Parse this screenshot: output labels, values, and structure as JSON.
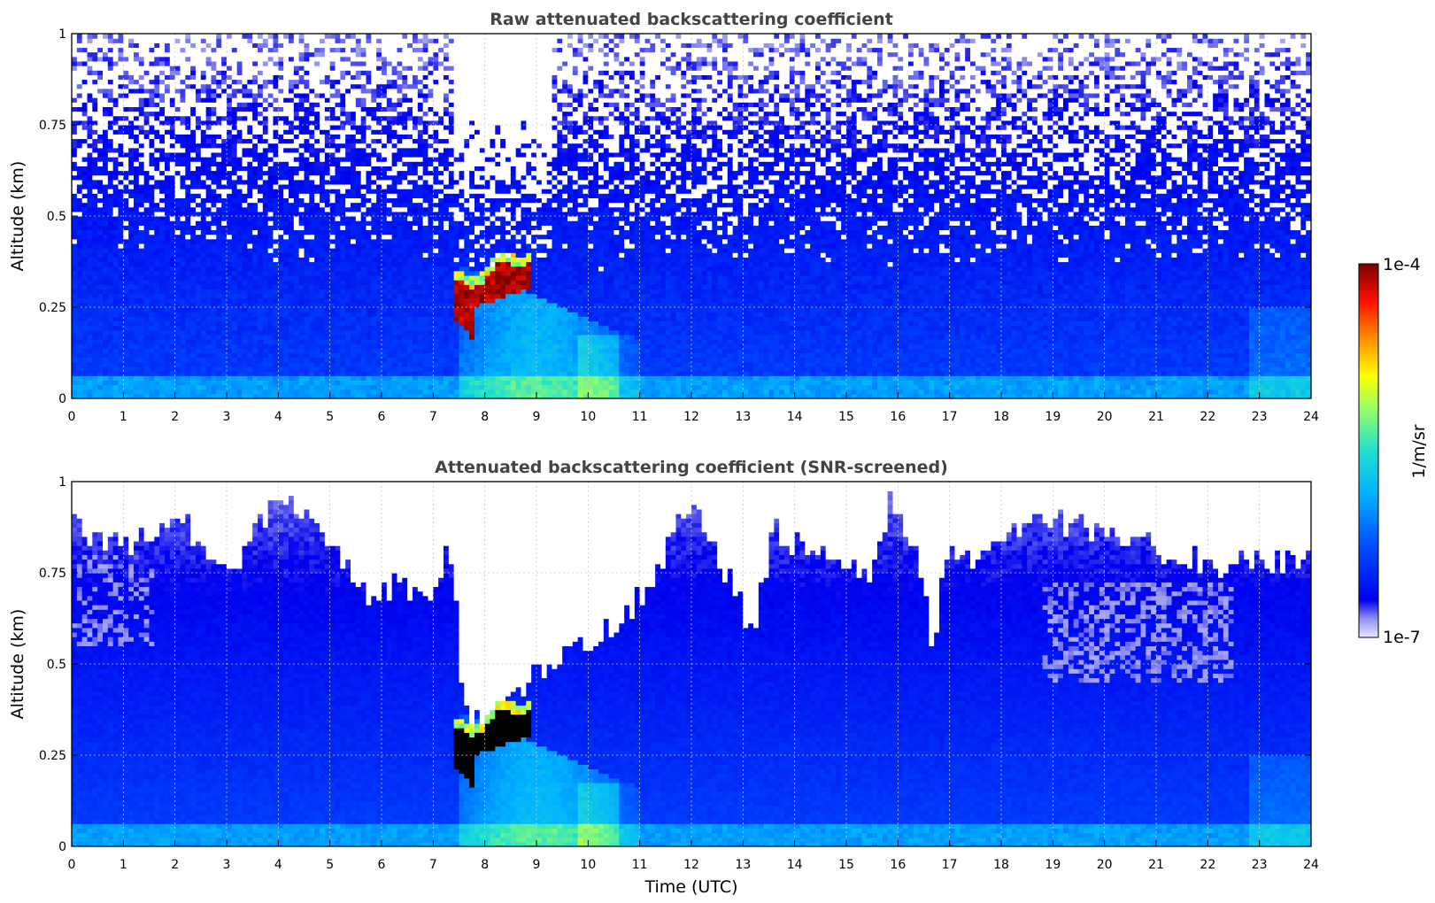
{
  "chart_data": [
    {
      "type": "heatmap",
      "title": "Raw attenuated backscattering coefficient",
      "xlabel": "",
      "ylabel": "Altitude (km)",
      "xlim": [
        0,
        24
      ],
      "ylim": [
        0,
        1
      ],
      "xticks": [
        "0",
        "1",
        "2",
        "3",
        "4",
        "5",
        "6",
        "7",
        "8",
        "9",
        "10",
        "11",
        "12",
        "13",
        "14",
        "15",
        "16",
        "17",
        "18",
        "19",
        "20",
        "21",
        "22",
        "23",
        "24"
      ],
      "yticks": [
        "0",
        "0.25",
        "0.5",
        "0.75",
        "1"
      ],
      "grid": true,
      "screened": false,
      "features": [
        {
          "name": "aerosol layer",
          "time_range": [
            7.4,
            8.9
          ],
          "altitude_top_km": [
            0.3,
            0.4
          ],
          "max_level": "1e-4"
        },
        {
          "name": "boundary layer plume",
          "time_range": [
            7.5,
            11.0
          ],
          "altitude_km": [
            0.0,
            0.35
          ]
        }
      ]
    },
    {
      "type": "heatmap",
      "title": "Attenuated backscattering coefficient (SNR-screened)",
      "xlabel": "Time (UTC)",
      "ylabel": "Altitude (km)",
      "xlim": [
        0,
        24
      ],
      "ylim": [
        0,
        1
      ],
      "xticks": [
        "0",
        "1",
        "2",
        "3",
        "4",
        "5",
        "6",
        "7",
        "8",
        "9",
        "10",
        "11",
        "12",
        "13",
        "14",
        "15",
        "16",
        "17",
        "18",
        "19",
        "20",
        "21",
        "22",
        "23",
        "24"
      ],
      "yticks": [
        "0",
        "0.25",
        "0.5",
        "0.75",
        "1"
      ],
      "grid": true,
      "screened": true,
      "features": [
        {
          "name": "saturated layer",
          "time_range": [
            7.4,
            8.9
          ],
          "altitude_top_km": [
            0.3,
            0.4
          ],
          "color": "black"
        }
      ]
    }
  ],
  "colorbar": {
    "max_label": "1e-4",
    "min_label": "1e-7",
    "unit_label": "1/m/sr",
    "scale": "log",
    "colormap": "jet"
  },
  "colors": {
    "title": "#444444",
    "background_mask": "#ffffff",
    "saturated": "#000000"
  }
}
